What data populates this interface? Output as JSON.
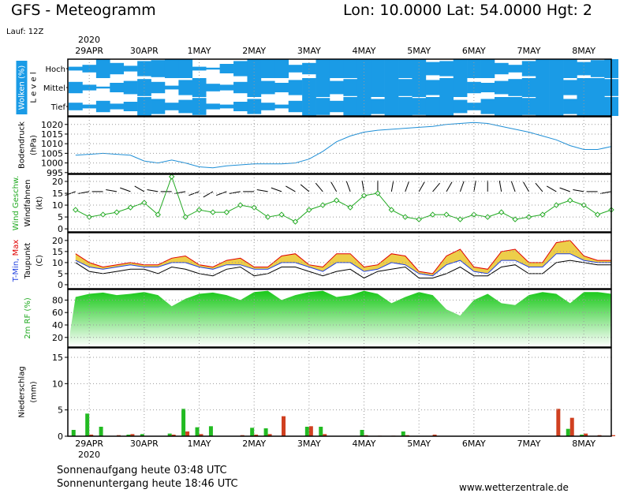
{
  "chart_data": {
    "type": "meteogram",
    "title": "GFS - Meteogramm",
    "location": "Lon: 10.0000 Lat: 54.0000 Hgt: 2",
    "run": "Lauf: 12Z",
    "year": "2020",
    "sunrise": "Sonnenaufgang heute 03:48 UTC",
    "sunset": "Sonnenuntergang heute 18:46 UTC",
    "source": "www.wetterzentrale.de",
    "xlim": [
      -0.39,
      9.5
    ],
    "xticks": [
      {
        "value": 0,
        "label": "29APR"
      },
      {
        "value": 1,
        "label": "30APR"
      },
      {
        "value": 2,
        "label": "1MAY"
      },
      {
        "value": 3,
        "label": "2MAY"
      },
      {
        "value": 4,
        "label": "3MAY"
      },
      {
        "value": 5,
        "label": "4MAY"
      },
      {
        "value": 6,
        "label": "5MAY"
      },
      {
        "value": 7,
        "label": "6MAY"
      },
      {
        "value": 8,
        "label": "7MAY"
      },
      {
        "value": 9,
        "label": "8MAY"
      }
    ],
    "x": [
      -0.25,
      0,
      0.25,
      0.5,
      0.75,
      1,
      1.25,
      1.5,
      1.75,
      2,
      2.25,
      2.5,
      2.75,
      3,
      3.25,
      3.5,
      3.75,
      4,
      4.25,
      4.5,
      4.75,
      5,
      5.25,
      5.5,
      5.75,
      6,
      6.25,
      6.5,
      6.75,
      7,
      7.25,
      7.5,
      7.75,
      8,
      8.25,
      8.5,
      8.75,
      9,
      9.25,
      9.5
    ],
    "grid": true,
    "panels": [
      {
        "type": "clouds",
        "color": "#1a9be6",
        "ylabel": [
          [
            {
              "text": "Wolken (%)",
              "color": "#ffffff",
              "background": "#1a9be6"
            }
          ],
          [
            {
              "text": "L e v e l"
            }
          ]
        ],
        "levels": [
          "Hoch",
          "Mittel",
          "Tief"
        ],
        "series": [
          {
            "values": [
              20,
              40,
              100,
              60,
              30,
              80,
              90,
              100,
              100,
              20,
              10,
              50,
              80,
              100,
              100,
              100,
              40,
              60,
              100,
              100,
              100,
              100,
              100,
              100,
              100,
              100,
              70,
              80,
              100,
              100,
              100,
              60,
              40,
              80,
              100,
              100,
              100,
              70,
              90,
              100
            ]
          },
          {
            "values": [
              60,
              30,
              10,
              50,
              70,
              90,
              60,
              20,
              80,
              100,
              40,
              30,
              60,
              100,
              70,
              50,
              80,
              100,
              100,
              70,
              90,
              100,
              100,
              100,
              90,
              100,
              80,
              100,
              100,
              60,
              50,
              70,
              90,
              100,
              100,
              100,
              80,
              100,
              100,
              90
            ]
          },
          {
            "values": [
              40,
              20,
              60,
              30,
              50,
              100,
              80,
              40,
              70,
              90,
              30,
              20,
              50,
              80,
              40,
              20,
              60,
              100,
              90,
              60,
              100,
              100,
              80,
              100,
              100,
              90,
              100,
              100,
              70,
              40,
              80,
              100,
              100,
              90,
              100,
              100,
              80,
              100,
              100,
              100
            ]
          }
        ]
      },
      {
        "type": "line",
        "ylabel": [
          [
            {
              "text": "Bodendruck"
            }
          ],
          [
            {
              "text": "(hPa)"
            }
          ]
        ],
        "ylim": [
          994.5,
          1024
        ],
        "yticks": [
          995,
          1000,
          1005,
          1010,
          1015,
          1020
        ],
        "series": [
          {
            "color": "#1f8fd6",
            "values": [
              1004,
              1004.5,
              1005,
              1004.5,
              1004,
              1001,
              1000,
              1001.5,
              1000,
              998,
              997.5,
              998.5,
              999,
              999.5,
              999.5,
              999.5,
              1000,
              1002,
              1006,
              1011,
              1014,
              1016,
              1017,
              1017.5,
              1018,
              1018.5,
              1019,
              1020,
              1020.5,
              1021,
              1020.5,
              1019,
              1017.5,
              1016,
              1014,
              1012,
              1009,
              1007,
              1007,
              1008.5
            ]
          }
        ]
      },
      {
        "type": "wind",
        "ylabel": [
          [
            {
              "text": "Wind Geschw.",
              "color": "#22aa22"
            }
          ],
          [
            {
              "text": "Windfahnen"
            }
          ],
          [
            {
              "text": "(kt)"
            }
          ]
        ],
        "ylim": [
          -1.3,
          23
        ],
        "yticks": [
          0,
          5,
          10,
          15,
          20
        ],
        "series": [
          {
            "color": "#22aa22",
            "values": [
              8,
              5,
              6,
              7,
              9,
              11,
              6,
              22,
              5,
              8,
              7,
              7,
              10,
              9,
              5,
              6,
              3,
              8,
              10,
              12,
              9,
              14,
              15,
              8,
              5,
              4,
              6,
              6,
              4,
              6,
              5,
              7,
              4,
              5,
              6,
              10,
              12,
              10,
              6,
              8
            ]
          }
        ],
        "direction": {
          "color": "#000000",
          "values": [
            250,
            260,
            270,
            280,
            290,
            300,
            280,
            270,
            260,
            250,
            240,
            250,
            260,
            270,
            280,
            290,
            300,
            310,
            320,
            330,
            340,
            350,
            0,
            10,
            20,
            30,
            40,
            30,
            20,
            10,
            0,
            350,
            340,
            330,
            320,
            300,
            290,
            280,
            270,
            260
          ]
        }
      },
      {
        "type": "temperature",
        "ylabel": [
          [
            {
              "text": "T-Min, ",
              "color": "#2040e0"
            },
            {
              "text": "Max",
              "color": "#e00000"
            }
          ],
          [
            {
              "text": "Taupunkt"
            }
          ],
          [
            {
              "text": "(C)"
            }
          ]
        ],
        "ylim": [
          -1.8,
          23.5
        ],
        "yticks": [
          0,
          5,
          10,
          15,
          20
        ],
        "fill_color": "#e8c21c",
        "series": [
          {
            "color": "#e00000",
            "values": [
              14,
              10,
              8,
              9,
              10,
              9,
              9,
              12,
              13,
              9,
              8,
              11,
              12,
              8,
              8,
              13,
              14,
              9,
              8,
              14,
              14,
              8,
              9,
              14,
              13,
              6,
              5,
              13,
              16,
              8,
              7,
              15,
              16,
              10,
              10,
              19,
              20,
              13,
              11,
              11
            ]
          },
          {
            "color": "#2040e0",
            "values": [
              11,
              8,
              7,
              8,
              9,
              8,
              8,
              10,
              10,
              8,
              7,
              9,
              9,
              7,
              7,
              10,
              10,
              8,
              6,
              10,
              10,
              6,
              7,
              10,
              9,
              5,
              4,
              9,
              11,
              6,
              5,
              11,
              11,
              8,
              8,
              14,
              14,
              11,
              10,
              10
            ]
          },
          {
            "color": "#000000",
            "values": [
              10,
              6,
              5,
              6,
              7,
              7,
              5,
              8,
              7,
              5,
              4,
              7,
              8,
              4,
              5,
              8,
              8,
              6,
              4,
              6,
              7,
              3,
              6,
              7,
              8,
              3,
              3,
              5,
              8,
              4,
              4,
              8,
              9,
              5,
              5,
              10,
              11,
              10,
              9,
              9
            ]
          }
        ]
      },
      {
        "type": "area",
        "ylabel": [
          [
            {
              "text": "2m RF (%)",
              "color": "#22aa22"
            }
          ]
        ],
        "ylim": [
          4.5,
          97
        ],
        "yticks": [
          20,
          40,
          60,
          80
        ],
        "series": [
          {
            "color": "#18c818",
            "values": [
              85,
              90,
              92,
              88,
              90,
              93,
              88,
              70,
              82,
              90,
              92,
              88,
              80,
              93,
              95,
              80,
              88,
              93,
              95,
              85,
              88,
              95,
              90,
              75,
              85,
              93,
              88,
              65,
              55,
              80,
              90,
              75,
              72,
              88,
              93,
              90,
              75,
              93,
              93,
              90
            ]
          }
        ]
      },
      {
        "type": "bar",
        "ylabel": [
          [
            {
              "text": "Niederschlag"
            }
          ],
          [
            {
              "text": "(mm)"
            }
          ]
        ],
        "ylim": [
          0,
          16.8
        ],
        "yticks": [
          0,
          5,
          10,
          15
        ],
        "series": [
          {
            "color": "#22bb22",
            "values": [
              1.2,
              4.3,
              1.8,
              0,
              0.3,
              0.4,
              0,
              0.5,
              5.2,
              1.7,
              1.9,
              0,
              0,
              1.6,
              1.5,
              0,
              0,
              1.8,
              1.8,
              0,
              0,
              1.2,
              0,
              0,
              0.9,
              0,
              0,
              0,
              0,
              0,
              0,
              0,
              0,
              0,
              0,
              0,
              1.4,
              0.3,
              0,
              0
            ]
          },
          {
            "color": "#d04020",
            "values": [
              0,
              0.3,
              0,
              0.2,
              0.4,
              0,
              0,
              0.3,
              0.9,
              0.4,
              0,
              0,
              0.2,
              0.3,
              0.4,
              3.8,
              0,
              1.9,
              0.4,
              0,
              0,
              0.2,
              0.1,
              0.1,
              0.2,
              0,
              0.3,
              0,
              0,
              0,
              0,
              0,
              0,
              0,
              0,
              5.2,
              3.5,
              0.5,
              0.2,
              0.2
            ]
          }
        ]
      }
    ]
  }
}
